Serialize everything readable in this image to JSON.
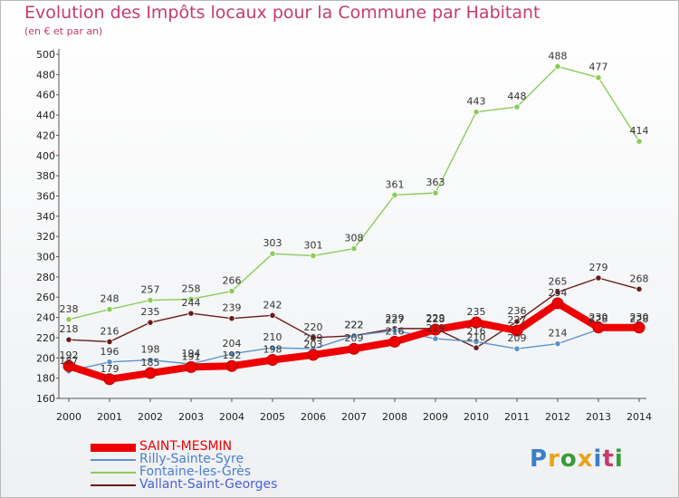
{
  "title": "Evolution des Impôts locaux pour la Commune par Habitant",
  "subtitle": "(en € et par an)",
  "logo": {
    "text": "Proxiti",
    "colors": [
      "#3a7fc8",
      "#e8a21a",
      "#3a9a3a",
      "#e8a21a",
      "#3a7fc8",
      "#c83a6e",
      "#3a9a3a"
    ]
  },
  "chart_data": {
    "type": "line",
    "x": [
      "2000",
      "2001",
      "2002",
      "2003",
      "2004",
      "2005",
      "2006",
      "2007",
      "2008",
      "2009",
      "2010",
      "2011",
      "2012",
      "2013",
      "2014"
    ],
    "ylim": [
      160,
      500
    ],
    "yticks": [
      160,
      180,
      200,
      220,
      240,
      260,
      280,
      300,
      320,
      340,
      360,
      380,
      400,
      420,
      440,
      460,
      480,
      500
    ],
    "grid": false,
    "legend_position": "bottom-left",
    "series": [
      {
        "name": "SAINT-MESMIN",
        "color": "#ee0000",
        "values": [
          192,
          179,
          185,
          191,
          192,
          198,
          203,
          209,
          216,
          228,
          235,
          227,
          254,
          230,
          230
        ]
      },
      {
        "name": "Rilly-Sainte-Syre",
        "color": "#5b94c9",
        "values": [
          187,
          196,
          198,
          194,
          204,
          210,
          209,
          222,
          227,
          219,
          216,
          209,
          214,
          228,
          228
        ]
      },
      {
        "name": "Fontaine-les-Grès",
        "color": "#8ccc5a",
        "values": [
          238,
          248,
          257,
          258,
          266,
          303,
          301,
          308,
          361,
          363,
          443,
          448,
          488,
          477,
          414
        ]
      },
      {
        "name": "Vallant-Saint-Georges",
        "color": "#6b1a1a",
        "values": [
          218,
          216,
          235,
          244,
          239,
          242,
          220,
          222,
          229,
          229,
          210,
          236,
          265,
          279,
          268
        ]
      }
    ]
  }
}
